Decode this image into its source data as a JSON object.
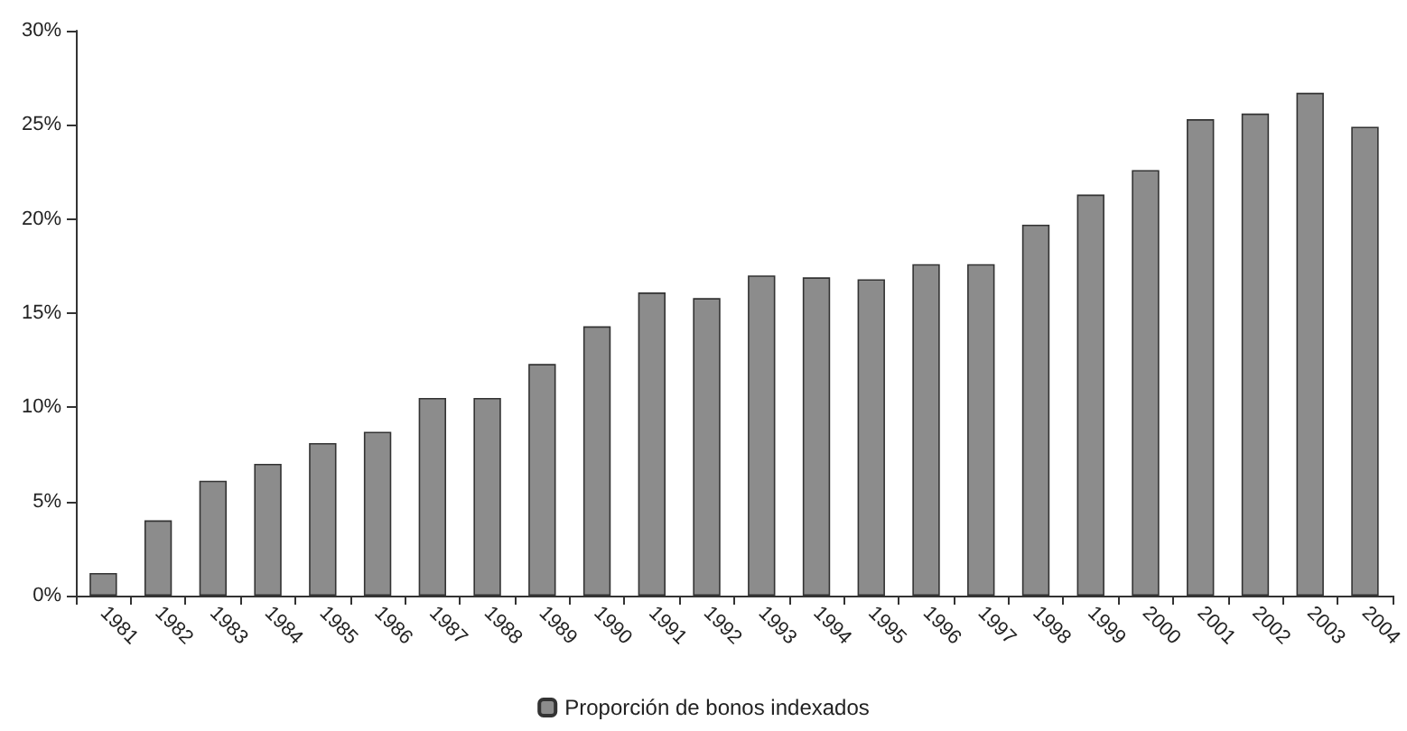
{
  "chart_data": {
    "type": "bar",
    "categories": [
      "1981",
      "1982",
      "1983",
      "1984",
      "1985",
      "1986",
      "1987",
      "1988",
      "1989",
      "1990",
      "1991",
      "1992",
      "1993",
      "1994",
      "1995",
      "1996",
      "1997",
      "1998",
      "1999",
      "2000",
      "2001",
      "2002",
      "2003",
      "2004"
    ],
    "series": [
      {
        "name": "Proporción de bonos indexados",
        "color": "#8c8c8c",
        "values": [
          1.2,
          4.0,
          6.1,
          7.0,
          8.1,
          8.7,
          10.5,
          10.5,
          12.3,
          14.3,
          16.1,
          15.8,
          17.0,
          16.9,
          16.8,
          17.6,
          17.6,
          19.7,
          21.3,
          22.6,
          25.3,
          25.6,
          26.7,
          24.9
        ]
      }
    ],
    "ylim": [
      0,
      30
    ],
    "yticks": [
      {
        "value": 0,
        "label": "0%"
      },
      {
        "value": 5,
        "label": "5%"
      },
      {
        "value": 10,
        "label": "10%"
      },
      {
        "value": 15,
        "label": "15%"
      },
      {
        "value": 20,
        "label": "20%"
      },
      {
        "value": 25,
        "label": "25%"
      },
      {
        "value": 30,
        "label": "30%"
      }
    ],
    "grid": false,
    "legend": "bottom"
  }
}
